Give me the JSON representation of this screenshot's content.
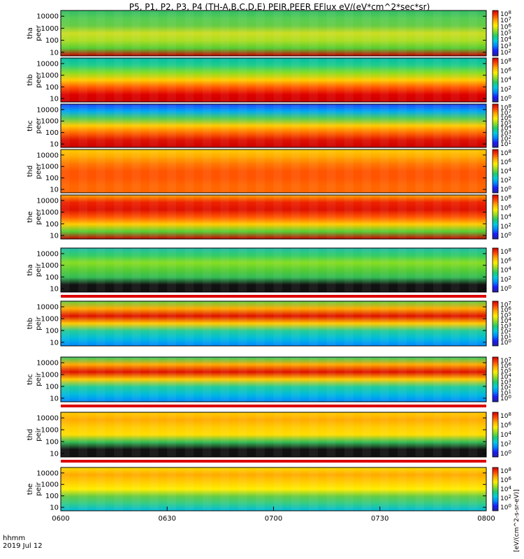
{
  "chart_data": {
    "type": "heatmap",
    "title": "P5, P1, P2, P3, P4 (TH-A,B,C,D,E) PEIR,PEER EFlux eV/(eV*cm^2*sec*sr)",
    "x_label_line1": "hhmm",
    "x_label_line2": "2019 Jul 12",
    "x_ticks": [
      "0600",
      "0630",
      "0700",
      "0730",
      "0800"
    ],
    "x_range": [
      "0600",
      "0800"
    ],
    "y_scale": "log",
    "y_range": [
      5,
      30000
    ],
    "y_ticks": [
      "10",
      "100",
      "1000",
      "10000"
    ],
    "colorbar_label": "[eV/(cm^2-s-sr-eV)]",
    "colorscale": [
      "#1a1aff",
      "#0066ff",
      "#00aaff",
      "#00e0c0",
      "#33cc55",
      "#aadd22",
      "#ffee00",
      "#ffaa00",
      "#ff5500",
      "#dd0000"
    ],
    "panels": [
      {
        "probe_line1": "tha",
        "probe_line2": "peer",
        "cb_ticks": [
          {
            "exp": "8"
          },
          {
            "exp": "7"
          },
          {
            "exp": "6"
          },
          {
            "exp": "5"
          },
          {
            "exp": "4"
          },
          {
            "exp": "3"
          },
          {
            "exp": "2"
          }
        ]
      },
      {
        "probe_line1": "thb",
        "probe_line2": "peer",
        "cb_ticks": [
          {
            "exp": "8"
          },
          {
            "exp": "6"
          },
          {
            "exp": "4"
          },
          {
            "exp": "2"
          },
          {
            "exp": "0"
          }
        ]
      },
      {
        "probe_line1": "thc",
        "probe_line2": "peer",
        "cb_ticks": [
          {
            "exp": "8"
          },
          {
            "exp": "7"
          },
          {
            "exp": "6"
          },
          {
            "exp": "5"
          },
          {
            "exp": "4"
          },
          {
            "exp": "3"
          },
          {
            "exp": "2"
          },
          {
            "exp": "1"
          }
        ]
      },
      {
        "probe_line1": "thd",
        "probe_line2": "peer",
        "cb_ticks": [
          {
            "exp": "8"
          },
          {
            "exp": "6"
          },
          {
            "exp": "4"
          },
          {
            "exp": "2"
          },
          {
            "exp": "0"
          }
        ]
      },
      {
        "probe_line1": "the",
        "probe_line2": "peer",
        "cb_ticks": [
          {
            "exp": "8"
          },
          {
            "exp": "6"
          },
          {
            "exp": "4"
          },
          {
            "exp": "2"
          },
          {
            "exp": "0"
          }
        ]
      },
      {
        "probe_line1": "tha",
        "probe_line2": "peir",
        "cb_ticks": [
          {
            "exp": "8"
          },
          {
            "exp": "6"
          },
          {
            "exp": "4"
          },
          {
            "exp": "2"
          },
          {
            "exp": "0"
          }
        ]
      },
      {
        "probe_line1": "thb",
        "probe_line2": "peir",
        "cb_ticks": [
          {
            "exp": "7"
          },
          {
            "exp": "6"
          },
          {
            "exp": "5"
          },
          {
            "exp": "4"
          },
          {
            "exp": "3"
          },
          {
            "exp": "2"
          },
          {
            "exp": "1"
          },
          {
            "exp": "0"
          }
        ]
      },
      {
        "probe_line1": "thc",
        "probe_line2": "peir",
        "cb_ticks": [
          {
            "exp": "7"
          },
          {
            "exp": "6"
          },
          {
            "exp": "5"
          },
          {
            "exp": "4"
          },
          {
            "exp": "3"
          },
          {
            "exp": "2"
          },
          {
            "exp": "1"
          },
          {
            "exp": "0"
          }
        ]
      },
      {
        "probe_line1": "thd",
        "probe_line2": "peir",
        "cb_ticks": [
          {
            "exp": "8"
          },
          {
            "exp": "6"
          },
          {
            "exp": "4"
          },
          {
            "exp": "2"
          },
          {
            "exp": "0"
          }
        ]
      },
      {
        "probe_line1": "the",
        "probe_line2": "peir",
        "cb_ticks": [
          {
            "exp": "8"
          },
          {
            "exp": "6"
          },
          {
            "exp": "4"
          },
          {
            "exp": "2"
          },
          {
            "exp": "0"
          }
        ]
      }
    ]
  }
}
